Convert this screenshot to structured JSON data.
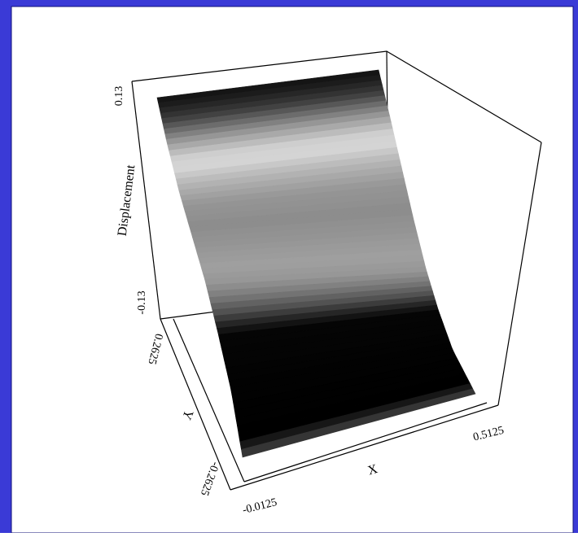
{
  "chart_data": {
    "type": "surface",
    "title": "",
    "xlabel": "X",
    "ylabel": "Y",
    "zlabel": "Displacement",
    "x_ticks": [
      "-0.0125",
      "0.5125"
    ],
    "y_ticks": [
      "-0.2625",
      "0.2625"
    ],
    "z_ticks": [
      "-0.13",
      "0.13"
    ],
    "xlim": [
      -0.0125,
      0.5125
    ],
    "ylim": [
      -0.2625,
      0.2625
    ],
    "zlim": [
      -0.13,
      0.13
    ],
    "colormap": "grayscale",
    "surface_profile": {
      "description_axis": "y",
      "y": [
        -0.2625,
        -0.2,
        -0.15,
        -0.1,
        -0.05,
        0.0,
        0.05,
        0.1,
        0.15,
        0.2,
        0.2625
      ],
      "z": [
        -0.13,
        -0.13,
        -0.13,
        -0.13,
        -0.05,
        0.0,
        0.03,
        0.06,
        0.09,
        0.12,
        0.13
      ]
    },
    "colors": {
      "border": "#3a3ad6",
      "background": "#ffffff"
    }
  }
}
